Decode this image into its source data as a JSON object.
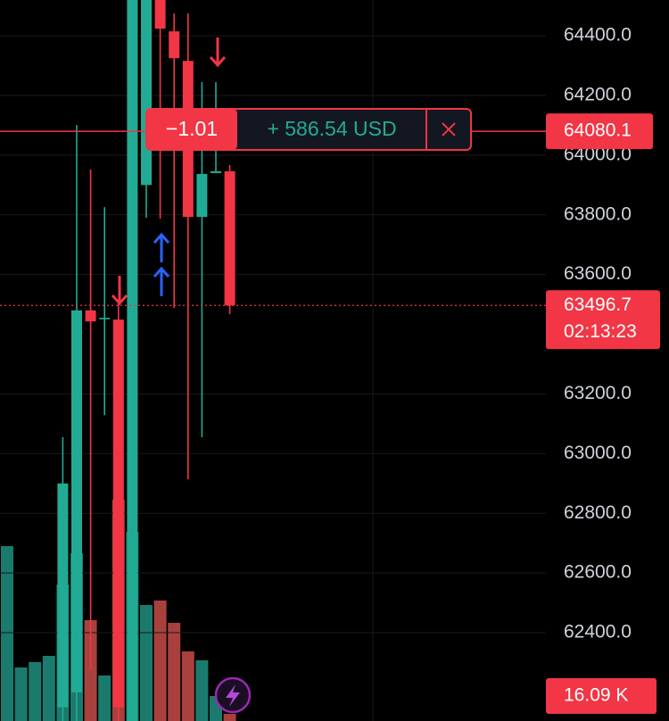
{
  "chart_data": {
    "type": "candlestick",
    "categories": [
      null,
      null,
      null,
      null,
      null,
      null,
      null,
      null,
      null,
      null,
      null,
      null,
      null,
      null,
      null,
      null,
      null
    ],
    "open": [
      null,
      null,
      null,
      null,
      62150,
      62200,
      63480,
      63450,
      63449,
      62104,
      63900,
      64520,
      64415,
      64316,
      63793,
      63940,
      63946
    ],
    "high": [
      null,
      null,
      null,
      null,
      63055,
      64101,
      63952,
      63826,
      63503,
      64520,
      64520,
      64520,
      64475,
      64475,
      64245,
      64245,
      63967
    ],
    "low": [
      null,
      null,
      null,
      null,
      62104,
      62104,
      62277,
      63129,
      62104,
      62104,
      63790,
      63787,
      63488,
      62914,
      63055,
      63940,
      63467
    ],
    "close": [
      null,
      null,
      null,
      null,
      62900,
      63480,
      63443,
      63455,
      62150,
      64520,
      64520,
      64424,
      64325,
      63793,
      63937,
      63946,
      63496.7
    ],
    "up_color": "#22ab94",
    "down_color": "#f23645",
    "volume": {
      "values": [
        392,
        120,
        132,
        146,
        306,
        376,
        226,
        102,
        496,
        424,
        260,
        270,
        220,
        156,
        136,
        56,
        16.09
      ],
      "value_labels": [
        null,
        null,
        null,
        null,
        null,
        null,
        null,
        null,
        null,
        null,
        null,
        null,
        null,
        null,
        null,
        null,
        "16.09 K"
      ],
      "up_color": "#1b7a6e",
      "down_color": "#a8413d"
    },
    "ylim": [
      62104,
      64520
    ],
    "yticks": [
      {
        "value": 62400,
        "label": "62400.0"
      },
      {
        "value": 62600,
        "label": "62600.0"
      },
      {
        "value": 62800,
        "label": "62800.0"
      },
      {
        "value": 63000,
        "label": "63000.0"
      },
      {
        "value": 63200,
        "label": "63200.0"
      },
      {
        "value": 63600,
        "label": "63600.0"
      },
      {
        "value": 63800,
        "label": "63800.0"
      },
      {
        "value": 64000,
        "label": "64000.0"
      },
      {
        "value": 64200,
        "label": "64200.0"
      },
      {
        "value": 64400,
        "label": "64400.0"
      }
    ],
    "grid": true,
    "position": {
      "quantity": "−1.01",
      "pnl": "+ 586.54 USD",
      "price": 64080.1
    },
    "last_price": 63496.7,
    "countdown": "02:13:23"
  }
}
